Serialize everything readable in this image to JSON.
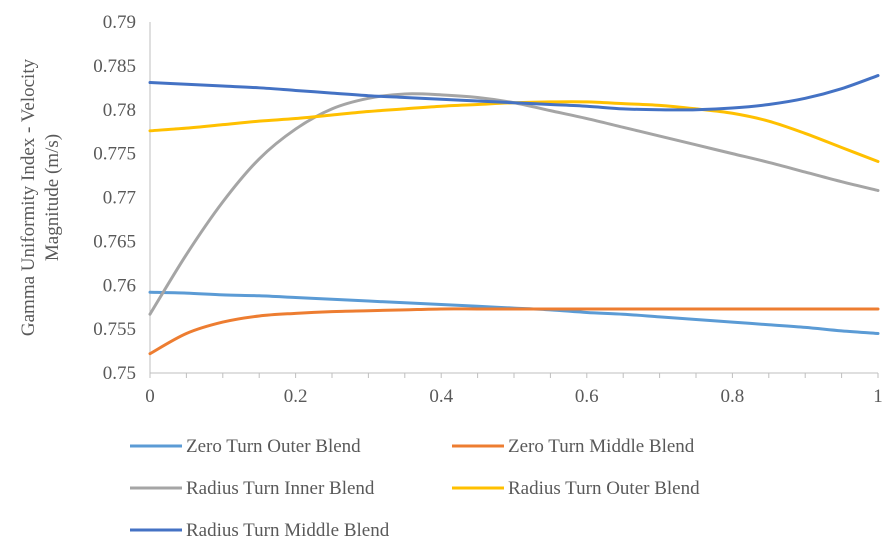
{
  "chart_data": {
    "type": "line",
    "title": "",
    "xlabel": "",
    "ylabel": [
      "Gamma Uniformity Index - Velocity",
      "Magnitude (m/s)"
    ],
    "xlim": [
      0,
      1
    ],
    "ylim": [
      0.75,
      0.79
    ],
    "x_ticks": [
      "0",
      "0.2",
      "0.4",
      "0.6",
      "0.8",
      "1"
    ],
    "y_ticks": [
      "0.75",
      "0.755",
      "0.76",
      "0.765",
      "0.77",
      "0.775",
      "0.78",
      "0.785",
      "0.79"
    ],
    "grid": false,
    "legend_position": "bottom",
    "x": [
      0,
      0.05,
      0.1,
      0.15,
      0.2,
      0.25,
      0.3,
      0.35,
      0.4,
      0.45,
      0.5,
      0.55,
      0.6,
      0.65,
      0.7,
      0.75,
      0.8,
      0.85,
      0.9,
      0.95,
      1
    ],
    "series": [
      {
        "name": "Zero Turn Outer Blend",
        "color": "#5B9BD5",
        "values": [
          0.7592,
          0.7591,
          0.7589,
          0.7588,
          0.7586,
          0.7584,
          0.7582,
          0.758,
          0.7578,
          0.7576,
          0.7574,
          0.7572,
          0.7569,
          0.7567,
          0.7564,
          0.7561,
          0.7558,
          0.7555,
          0.7552,
          0.7548,
          0.7545
        ]
      },
      {
        "name": "Zero Turn Middle Blend",
        "color": "#ED7D31",
        "values": [
          0.7522,
          0.7545,
          0.7558,
          0.7565,
          0.7568,
          0.757,
          0.7571,
          0.7572,
          0.7573,
          0.7573,
          0.7573,
          0.7573,
          0.7573,
          0.7573,
          0.7573,
          0.7573,
          0.7573,
          0.7573,
          0.7573,
          0.7573,
          0.7573
        ]
      },
      {
        "name": "Radius Turn Inner Blend",
        "color": "#A5A5A5",
        "values": [
          0.7567,
          0.7635,
          0.7695,
          0.7744,
          0.7778,
          0.7801,
          0.7813,
          0.7818,
          0.7817,
          0.7814,
          0.7808,
          0.7799,
          0.779,
          0.778,
          0.777,
          0.776,
          0.775,
          0.774,
          0.7729,
          0.7718,
          0.7708
        ]
      },
      {
        "name": "Radius Turn Outer Blend",
        "color": "#FFC000",
        "values": [
          0.7776,
          0.7779,
          0.7783,
          0.7787,
          0.779,
          0.7794,
          0.7798,
          0.7801,
          0.7804,
          0.7806,
          0.7808,
          0.7809,
          0.7809,
          0.7807,
          0.7805,
          0.7801,
          0.7796,
          0.7787,
          0.7773,
          0.7757,
          0.7741
        ]
      },
      {
        "name": "Radius Turn Middle Blend",
        "color": "#4472C4",
        "values": [
          0.7831,
          0.7829,
          0.7827,
          0.7825,
          0.7822,
          0.7819,
          0.7816,
          0.7814,
          0.7812,
          0.781,
          0.7808,
          0.7806,
          0.7804,
          0.7801,
          0.78,
          0.78,
          0.7802,
          0.7806,
          0.7813,
          0.7824,
          0.7839
        ]
      }
    ]
  }
}
